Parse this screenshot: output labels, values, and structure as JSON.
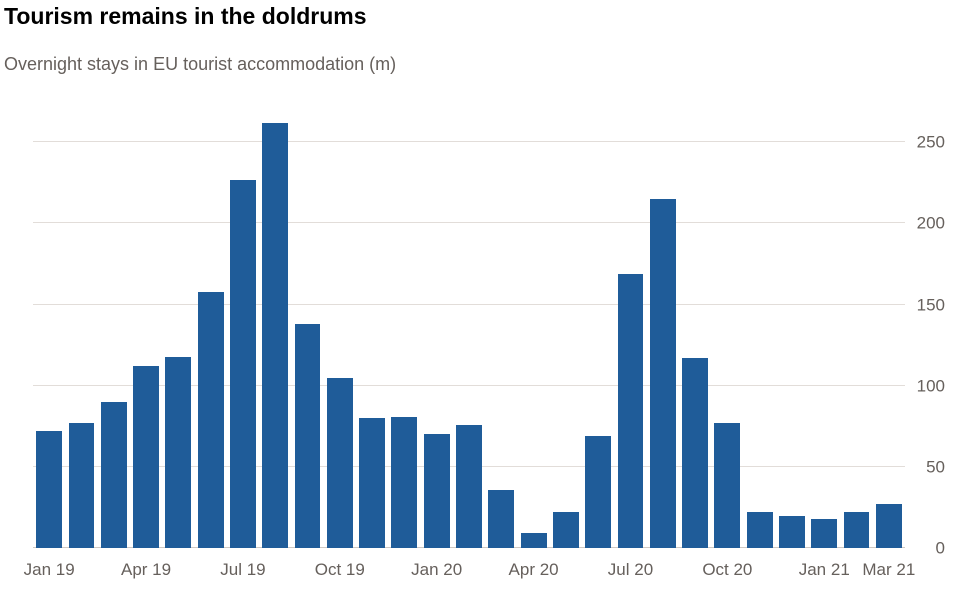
{
  "header": {
    "title": "Tourism remains in the doldrums",
    "subtitle": "Overnight stays in EU tourist accommodation (m)"
  },
  "chart_data": {
    "type": "bar",
    "title": "Tourism remains in the doldrums",
    "subtitle": "Overnight stays in EU tourist accommodation (m)",
    "categories": [
      "Jan 19",
      "Feb 19",
      "Mar 19",
      "Apr 19",
      "May 19",
      "Jun 19",
      "Jul 19",
      "Aug 19",
      "Sep 19",
      "Oct 19",
      "Nov 19",
      "Dec 19",
      "Jan 20",
      "Feb 20",
      "Mar 20",
      "Apr 20",
      "May 20",
      "Jun 20",
      "Jul 20",
      "Aug 20",
      "Sep 20",
      "Oct 20",
      "Nov 20",
      "Dec 20",
      "Jan 21",
      "Feb 21",
      "Mar 21"
    ],
    "values": [
      72,
      77,
      90,
      112,
      118,
      158,
      227,
      262,
      138,
      105,
      80,
      81,
      70,
      76,
      36,
      9,
      22,
      69,
      169,
      215,
      117,
      77,
      22,
      20,
      18,
      22,
      27
    ],
    "x_ticks": [
      {
        "index": 0,
        "label": "Jan 19"
      },
      {
        "index": 3,
        "label": "Apr 19"
      },
      {
        "index": 6,
        "label": "Jul 19"
      },
      {
        "index": 9,
        "label": "Oct 19"
      },
      {
        "index": 12,
        "label": "Jan 20"
      },
      {
        "index": 15,
        "label": "Apr 20"
      },
      {
        "index": 18,
        "label": "Jul 20"
      },
      {
        "index": 21,
        "label": "Oct 20"
      },
      {
        "index": 24,
        "label": "Jan 21"
      },
      {
        "index": 26,
        "label": "Mar 21"
      }
    ],
    "yticks": [
      0,
      50,
      100,
      150,
      200,
      250
    ],
    "ylim": [
      0,
      265
    ],
    "xlabel": "",
    "ylabel": "",
    "grid": true,
    "legend": "none",
    "bar_color": "#1f5c99",
    "grid_color": "#e2ddd9",
    "axis_text_color": "#66605c"
  }
}
